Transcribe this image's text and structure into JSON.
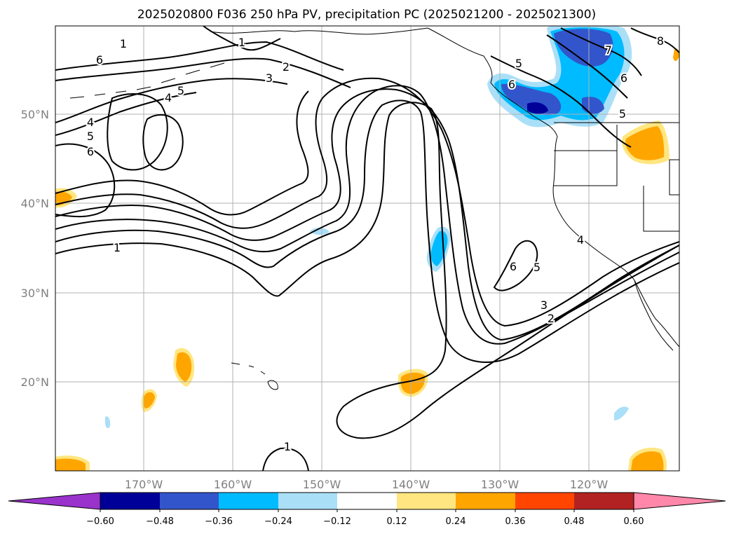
{
  "title": "2025020800 F036 250 hPa PV, precipitation PC (2025021200 - 2025021300)",
  "map": {
    "lat_labels": [
      "50°N",
      "40°N",
      "30°N",
      "20°N"
    ],
    "lon_labels": [
      "170°W",
      "160°W",
      "150°W",
      "140°W",
      "130°W",
      "120°W"
    ],
    "contour_levels": [
      "1",
      "2",
      "3",
      "4",
      "5",
      "6",
      "7",
      "8"
    ],
    "contour_labels": [
      "1",
      "1",
      "1",
      "1",
      "2",
      "2",
      "3",
      "3",
      "4",
      "4",
      "4",
      "5",
      "5",
      "5",
      "5",
      "5",
      "6",
      "6",
      "6",
      "6",
      "6",
      "7",
      "8"
    ]
  },
  "colorbar": {
    "ticks": [
      "−0.60",
      "−0.48",
      "−0.36",
      "−0.24",
      "−0.12",
      "0.12",
      "0.24",
      "0.36",
      "0.48",
      "0.60"
    ],
    "colors": [
      "#9933cc",
      "#000099",
      "#3355cc",
      "#00bbff",
      "#aadff8",
      "#ffffff",
      "#ffe680",
      "#ffa500",
      "#ff4500",
      "#b22222",
      "#ff88aa"
    ]
  }
}
